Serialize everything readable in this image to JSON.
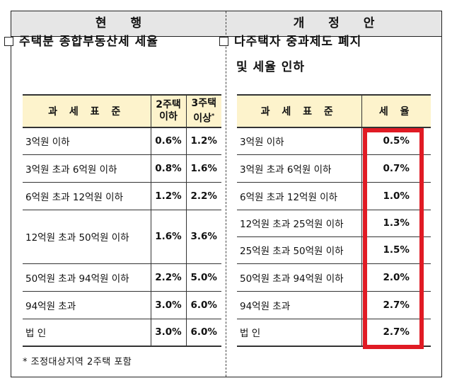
{
  "header": {
    "current_label": "현 행",
    "proposed_label": "개 정 안"
  },
  "left": {
    "section_title": "주택분 종합부동산세 세율",
    "table": {
      "headers": [
        "과 세 표 준",
        "2주택 이하",
        "3주택 이상"
      ],
      "header_col2_line1": "2주택",
      "header_col2_line2": "이하",
      "header_col3_line1": "3주택",
      "header_col3_line2": "이상",
      "header_col3_mark": "*",
      "rows": [
        {
          "bracket": "3억원 이하",
          "rate_2": "0.6%",
          "rate_3": "1.2%"
        },
        {
          "bracket": "3억원 초과 6억원 이하",
          "rate_2": "0.8%",
          "rate_3": "1.6%"
        },
        {
          "bracket": "6억원 초과 12억원 이하",
          "rate_2": "1.2%",
          "rate_3": "2.2%"
        },
        {
          "bracket": "12억원 초과 50억원 이하",
          "rate_2": "1.6%",
          "rate_3": "3.6%"
        },
        {
          "bracket": "50억원 초과 94억원 이하",
          "rate_2": "2.2%",
          "rate_3": "5.0%"
        },
        {
          "bracket": "94억원 초과",
          "rate_2": "3.0%",
          "rate_3": "6.0%"
        },
        {
          "bracket": "법 인",
          "rate_2": "3.0%",
          "rate_3": "6.0%"
        }
      ]
    },
    "footnote": "* 조정대상지역 2주택 포함"
  },
  "right": {
    "section_title_line1": "다주택자 중과제도 폐지",
    "section_title_line2": "및 세율 인하",
    "table": {
      "headers": [
        "과 세 표 준",
        "세 율"
      ],
      "rows": [
        {
          "bracket": "3억원 이하",
          "rate": "0.5%"
        },
        {
          "bracket": "3억원 초과 6억원 이하",
          "rate": "0.7%"
        },
        {
          "bracket": "6억원 초과 12억원 이하",
          "rate": "1.0%"
        },
        {
          "bracket": "12억원 초과 25억원 이하",
          "rate": "1.3%"
        },
        {
          "bracket": "25억원 초과 50억원 이하",
          "rate": "1.5%"
        },
        {
          "bracket": "50억원 초과 94억원 이하",
          "rate": "2.0%"
        },
        {
          "bracket": "94억원 초과",
          "rate": "2.7%"
        },
        {
          "bracket": "법 인",
          "rate": "2.7%"
        }
      ]
    }
  },
  "colors": {
    "header_bg": "#e6e6e6",
    "table_header_bg": "#fdf3cc",
    "highlight_border": "#e01b24"
  }
}
